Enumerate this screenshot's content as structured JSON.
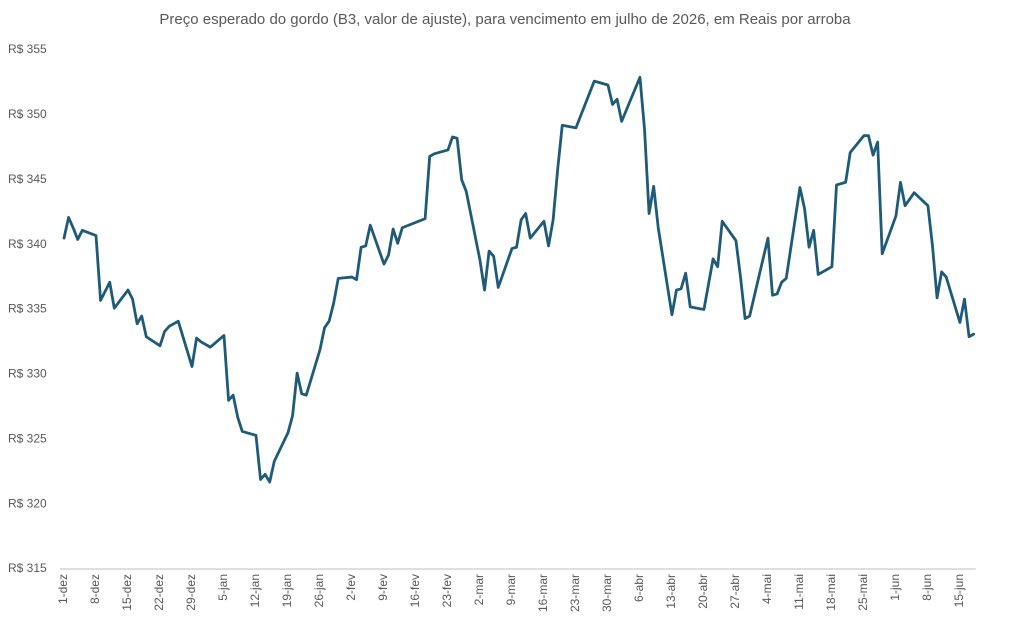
{
  "chart_data": {
    "type": "line",
    "title": "Preço esperado do gordo (B3, valor de ajuste), para vencimento em julho de 2026, em Reais por arroba",
    "categories": [
      "1-dez",
      null,
      null,
      null,
      null,
      null,
      null,
      "8-dez",
      null,
      null,
      null,
      null,
      null,
      null,
      "15-dez",
      null,
      null,
      null,
      null,
      null,
      null,
      "22-dez",
      null,
      null,
      null,
      null,
      null,
      null,
      "29-dez",
      null,
      null,
      null,
      null,
      null,
      null,
      "5-jan",
      null,
      null,
      null,
      null,
      null,
      null,
      "12-jan",
      null,
      null,
      null,
      null,
      null,
      null,
      "19-jan",
      null,
      null,
      null,
      null,
      null,
      null,
      "26-jan",
      null,
      null,
      null,
      null,
      null,
      null,
      "2-fev",
      null,
      null,
      null,
      null,
      null,
      null,
      "9-fev",
      null,
      null,
      null,
      null,
      null,
      null,
      "16-fev",
      null,
      null,
      null,
      null,
      null,
      null,
      "23-fev",
      null,
      null,
      null,
      null,
      null,
      null,
      "2-mar",
      null,
      null,
      null,
      null,
      null,
      null,
      "9-mar",
      null,
      null,
      null,
      null,
      null,
      null,
      "16-mar",
      null,
      null,
      null,
      null,
      null,
      null,
      "23-mar",
      null,
      null,
      null,
      null,
      null,
      null,
      "30-mar",
      null,
      null,
      null,
      null,
      null,
      null,
      "6-abr",
      null,
      null,
      null,
      null,
      null,
      null,
      "13-abr",
      null,
      null,
      null,
      null,
      null,
      null,
      "20-abr",
      null,
      null,
      null,
      null,
      null,
      null,
      "27-abr",
      null,
      null,
      null,
      null,
      null,
      null,
      "4-mai",
      null,
      null,
      null,
      null,
      null,
      null,
      "11-mai",
      null,
      null,
      null,
      null,
      null,
      null,
      "18-mai",
      null,
      null,
      null,
      null,
      null,
      null,
      "25-mai",
      null,
      null,
      null,
      null,
      null,
      null,
      "1-jun",
      null,
      null,
      null,
      null,
      null,
      null,
      "8-jun",
      null,
      null,
      null,
      null,
      null,
      null,
      "15-jun",
      null,
      null,
      null
    ],
    "values": [
      340.5,
      342.1,
      341.3,
      340.4,
      341.1,
      null,
      null,
      340.7,
      335.7,
      336.4,
      337.1,
      335.1,
      null,
      null,
      336.5,
      335.8,
      333.9,
      334.5,
      332.9,
      null,
      null,
      332.2,
      333.3,
      333.7,
      null,
      334.1,
      null,
      null,
      330.6,
      332.8,
      332.5,
      null,
      332.1,
      null,
      null,
      333.0,
      328.0,
      328.4,
      326.7,
      325.6,
      null,
      null,
      325.3,
      321.9,
      322.3,
      321.7,
      323.3,
      null,
      null,
      325.5,
      326.8,
      330.1,
      328.5,
      328.4,
      null,
      null,
      331.9,
      333.6,
      334.1,
      335.5,
      337.4,
      null,
      null,
      337.5,
      337.3,
      339.8,
      339.9,
      341.5,
      null,
      null,
      338.5,
      339.2,
      341.2,
      340.1,
      341.3,
      null,
      null,
      null,
      null,
      342.0,
      346.8,
      347.0,
      null,
      null,
      347.3,
      348.3,
      348.2,
      345.0,
      344.1,
      null,
      null,
      338.8,
      336.5,
      339.5,
      339.1,
      336.7,
      null,
      null,
      339.7,
      339.8,
      341.9,
      342.4,
      340.5,
      null,
      null,
      341.8,
      339.9,
      341.9,
      345.8,
      349.2,
      null,
      null,
      349.0,
      349.9,
      350.8,
      351.7,
      352.6,
      null,
      null,
      352.3,
      350.8,
      351.2,
      349.5,
      null,
      null,
      null,
      352.9,
      348.9,
      342.4,
      344.5,
      341.3,
      null,
      null,
      334.6,
      336.5,
      336.6,
      337.8,
      335.2,
      null,
      null,
      335.0,
      null,
      338.9,
      338.3,
      341.8,
      null,
      null,
      340.3,
      337.5,
      334.3,
      334.5,
      null,
      null,
      null,
      340.5,
      336.1,
      336.2,
      337.1,
      337.4,
      null,
      null,
      344.4,
      342.8,
      339.8,
      341.1,
      337.7,
      null,
      null,
      338.3,
      344.6,
      344.7,
      344.8,
      347.1,
      null,
      null,
      348.4,
      348.4,
      346.9,
      347.9,
      339.3,
      null,
      null,
      342.2,
      344.8,
      343.0,
      null,
      344.0,
      null,
      null,
      343.0,
      339.9,
      335.9,
      337.9,
      337.5,
      null,
      null,
      334.0,
      335.8,
      332.9,
      333.1
    ],
    "color": "#1f5b78",
    "span_gaps": true,
    "ylim": [
      315,
      355
    ],
    "yticks": [
      {
        "value": 315,
        "label": "R$ 315"
      },
      {
        "value": 320,
        "label": "R$ 320"
      },
      {
        "value": 325,
        "label": "R$ 325"
      },
      {
        "value": 330,
        "label": "R$ 330"
      },
      {
        "value": 335,
        "label": "R$ 335"
      },
      {
        "value": 340,
        "label": "R$ 340"
      },
      {
        "value": 345,
        "label": "R$ 345"
      },
      {
        "value": 350,
        "label": "R$ 350"
      },
      {
        "value": 355,
        "label": "R$ 355"
      }
    ],
    "grid": false
  }
}
